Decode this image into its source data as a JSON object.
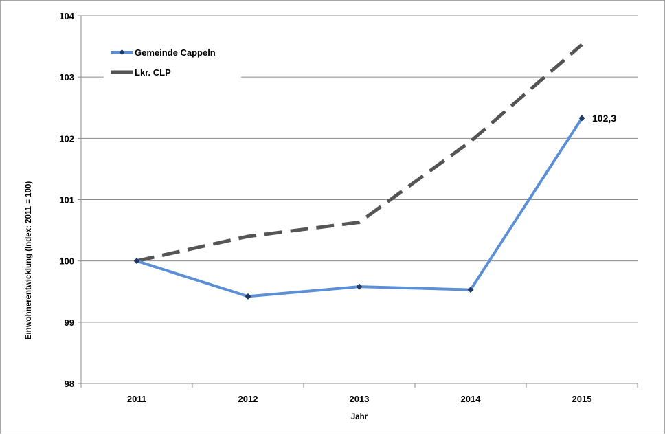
{
  "chart_data": {
    "type": "line",
    "title": "",
    "xlabel": "Jahr",
    "ylabel": "Einwohnerentwicklung (Index: 2011 = 100)",
    "categories": [
      "2011",
      "2012",
      "2013",
      "2014",
      "2015"
    ],
    "ylim": [
      98,
      104
    ],
    "yticks": [
      98,
      99,
      100,
      101,
      102,
      103,
      104
    ],
    "grid": true,
    "legend_position": "top-left",
    "series": [
      {
        "name": "Gemeinde Cappeln",
        "values": [
          100.0,
          99.42,
          99.58,
          99.53,
          102.33
        ],
        "color": "#5b8fd6",
        "marker_color": "#1f3864",
        "line_style": "solid",
        "marker": "diamond"
      },
      {
        "name": "Lkr. CLP",
        "values": [
          100.0,
          100.4,
          100.63,
          101.95,
          103.53
        ],
        "color": "#555555",
        "line_style": "dashed",
        "marker": "none"
      }
    ],
    "annotations": [
      {
        "series": 0,
        "index": 4,
        "text": "102,3"
      }
    ]
  }
}
